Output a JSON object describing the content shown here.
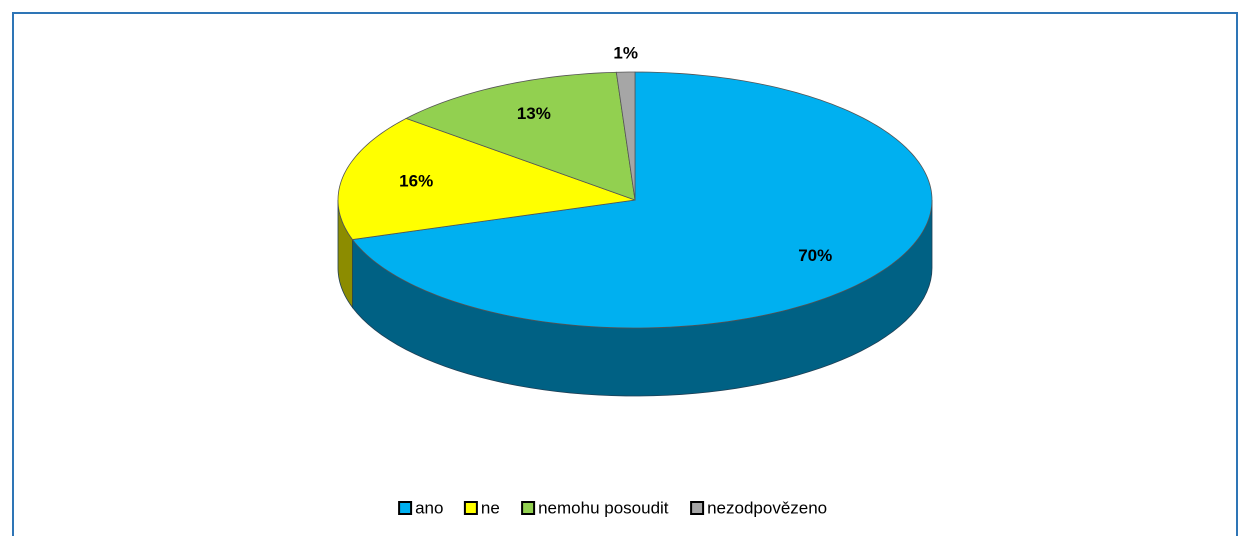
{
  "chart_data": {
    "type": "pie",
    "categories": [
      "ano",
      "ne",
      "nemohu posoudit",
      "nezodpovězeno"
    ],
    "values": [
      70,
      16,
      13,
      1
    ],
    "value_labels": [
      "70%",
      "16%",
      "13%",
      "1%"
    ],
    "colors": [
      "#00b0f0",
      "#ffff00",
      "#92d050",
      "#a6a6a6"
    ],
    "legend": "bottom"
  }
}
